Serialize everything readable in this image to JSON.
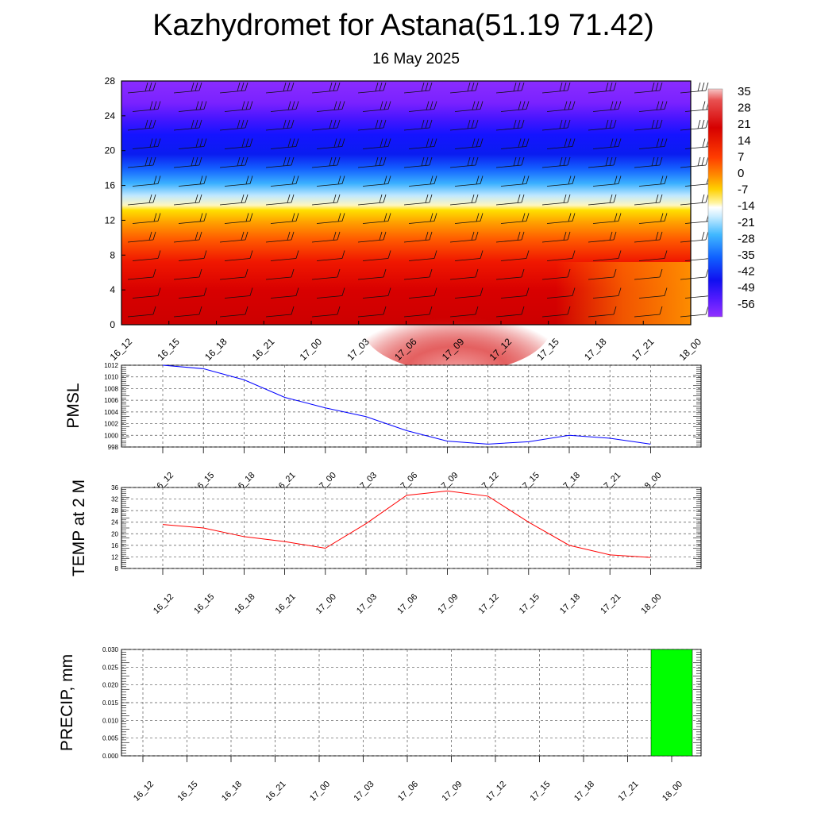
{
  "title": "Kazhydromet for Astana(51.19 71.42)",
  "subtitle": "16 May 2025",
  "colors": {
    "pmsl_line": "#0000ff",
    "temp_line": "#ff0000",
    "precip_bar": "#00ff00",
    "grid": "#555555"
  },
  "chart_data": [
    {
      "type": "heatmap",
      "x": [
        "16_12",
        "16_15",
        "16_18",
        "16_21",
        "17_00",
        "17_03",
        "17_06",
        "17_09",
        "17_12",
        "17_15",
        "17_18",
        "17_21",
        "18_00"
      ],
      "yticks": [
        "0",
        "4",
        "8",
        "12",
        "16",
        "20",
        "24",
        "28"
      ],
      "ylim": [
        0,
        28
      ],
      "colorbar_labels": [
        "35",
        "28",
        "21",
        "14",
        "7",
        "0",
        "-7",
        "-14",
        "-21",
        "-28",
        "-35",
        "-42",
        "-49",
        "-56"
      ],
      "colorbar_range": [
        -60,
        36
      ],
      "overlay": "wind-barbs",
      "grid": false
    },
    {
      "type": "line",
      "ylabel": "PMSL",
      "x": [
        "16_12",
        "16_15",
        "16_18",
        "16_21",
        "17_00",
        "17_03",
        "17_06",
        "17_09",
        "17_12",
        "17_15",
        "17_18",
        "17_21",
        "18_00"
      ],
      "values": [
        1012.0,
        1011.4,
        1009.5,
        1006.5,
        1004.7,
        1003.2,
        1000.8,
        999.0,
        998.5,
        998.9,
        1000.0,
        999.5,
        998.5
      ],
      "yticks": [
        "1012",
        "1010",
        "1008",
        "1006",
        "1004",
        "1002",
        "1000",
        "998"
      ],
      "ylim": [
        998,
        1012
      ],
      "grid": true
    },
    {
      "type": "line",
      "ylabel": "TEMP at 2 M",
      "x": [
        "16_12",
        "16_15",
        "16_18",
        "16_21",
        "17_00",
        "17_03",
        "17_06",
        "17_09",
        "17_12",
        "17_15",
        "17_18",
        "17_21",
        "18_00"
      ],
      "values": [
        23.2,
        22.0,
        19.0,
        17.3,
        15.0,
        23.5,
        33.3,
        34.8,
        33.0,
        24.0,
        16.0,
        12.7,
        11.8
      ],
      "yticks": [
        "36",
        "32",
        "28",
        "24",
        "20",
        "16",
        "12",
        "8"
      ],
      "ylim": [
        8,
        36
      ],
      "grid": true
    },
    {
      "type": "bar",
      "ylabel": "PRECIP, mm",
      "x": [
        "16_12",
        "16_15",
        "16_18",
        "16_21",
        "17_00",
        "17_03",
        "17_06",
        "17_09",
        "17_12",
        "17_15",
        "17_18",
        "17_21",
        "18_00"
      ],
      "values": [
        0,
        0,
        0,
        0,
        0,
        0,
        0,
        0,
        0,
        0,
        0,
        0,
        0.03
      ],
      "yticks": [
        "0.030",
        "0.025",
        "0.020",
        "0.015",
        "0.010",
        "0.005",
        "0.000"
      ],
      "ylim": [
        0,
        0.03
      ],
      "grid": true
    }
  ]
}
